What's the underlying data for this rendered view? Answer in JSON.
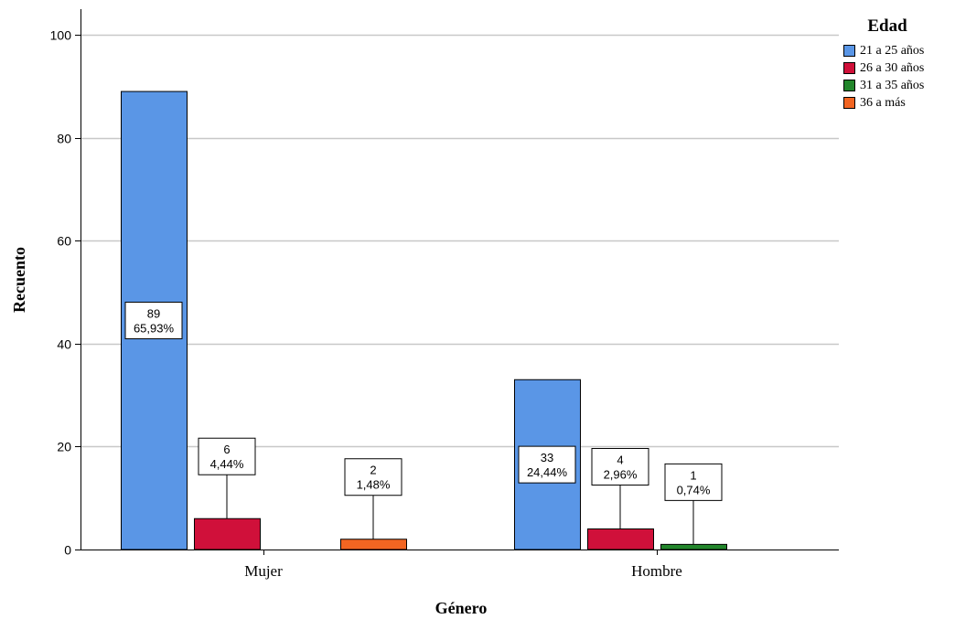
{
  "chart_data": {
    "type": "bar",
    "xlabel": "Género",
    "ylabel": "Recuento",
    "categories": [
      "Mujer",
      "Hombre"
    ],
    "ylim": [
      0,
      105
    ],
    "yticks": [
      "0",
      "20",
      "40",
      "60",
      "80",
      "100"
    ],
    "grid": true,
    "legend": {
      "title": "Edad",
      "position": "top-right"
    },
    "series": [
      {
        "name": "21 a 25 años",
        "color": "#5a96e6",
        "values": [
          89,
          33
        ],
        "labels": [
          [
            "89",
            "65,93%"
          ],
          [
            "33",
            "24,44%"
          ]
        ]
      },
      {
        "name": "26 a 30 años",
        "color": "#d0103a",
        "values": [
          6,
          4
        ],
        "labels": [
          [
            "6",
            "4,44%"
          ],
          [
            "4",
            "2,96%"
          ]
        ]
      },
      {
        "name": "31 a 35 años",
        "color": "#22862b",
        "values": [
          0,
          1
        ],
        "labels": [
          null,
          [
            "1",
            "0,74%"
          ]
        ]
      },
      {
        "name": "36 a más",
        "color": "#f26522",
        "values": [
          2,
          0
        ],
        "labels": [
          [
            "2",
            "1,48%"
          ],
          null
        ]
      }
    ]
  }
}
